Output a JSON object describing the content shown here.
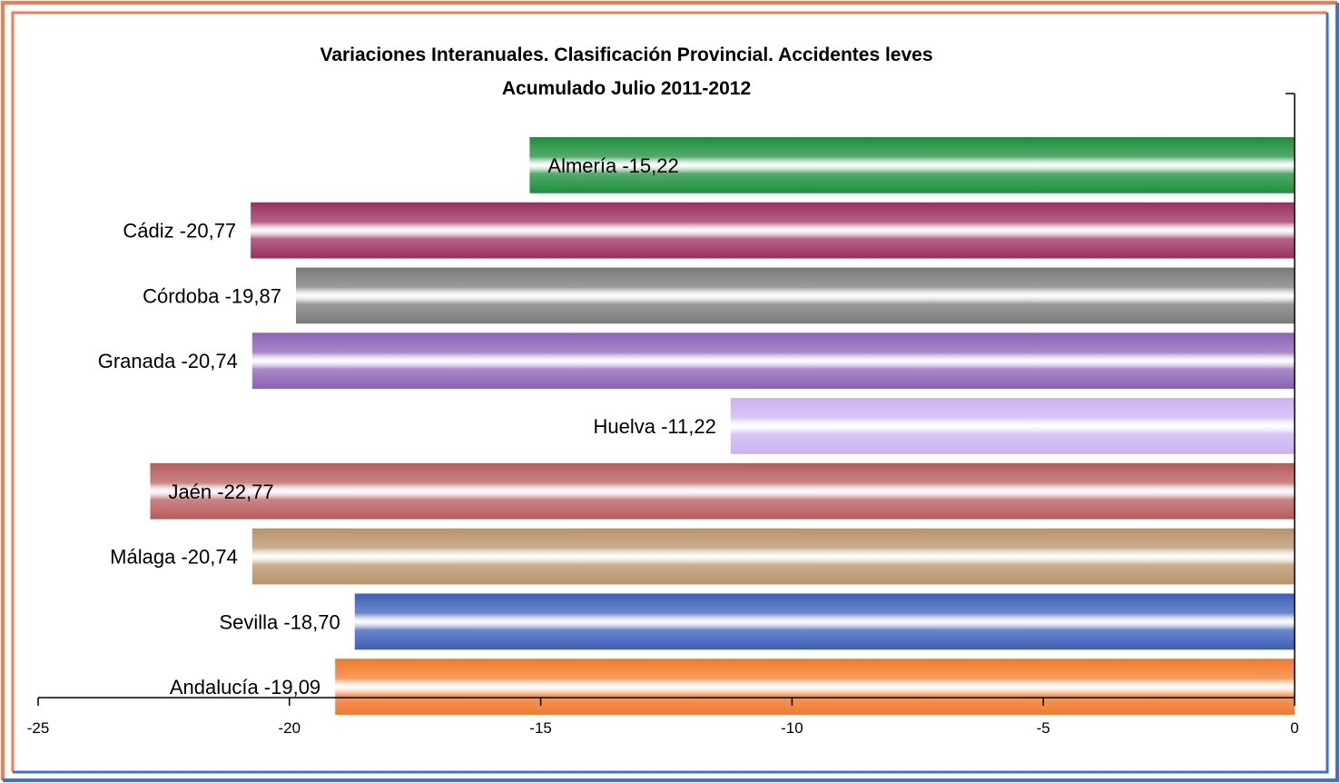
{
  "chart_data": {
    "type": "bar",
    "orientation": "horizontal",
    "title": "Variaciones Interanuales. Clasificación Provincial. Accidentes leves",
    "subtitle": "Acumulado Julio 2011-2012",
    "xlim": [
      -25,
      0
    ],
    "x_ticks": [
      "-25",
      "-20",
      "-15",
      "-10",
      "-5",
      "0"
    ],
    "x_tick_values": [
      -25,
      -20,
      -15,
      -10,
      -5,
      0
    ],
    "grid": false,
    "legend": "none",
    "categories": [
      "Almería",
      "Cádiz",
      "Córdoba",
      "Granada",
      "Huelva",
      "Jaén",
      "Málaga",
      "Sevilla",
      "Andalucía"
    ],
    "values": [
      -15.22,
      -20.77,
      -19.87,
      -20.74,
      -11.22,
      -22.77,
      -20.74,
      -18.7,
      -19.09
    ],
    "labels": [
      "Almería -15,22",
      "Cádiz -20,77",
      "Córdoba -19,87",
      "Granada -20,74",
      "Huelva -11,22",
      "Jaén -22,77",
      "Málaga -20,74",
      "Sevilla -18,70",
      "Andalucía -19,09"
    ],
    "label_inside": [
      true,
      false,
      false,
      false,
      false,
      true,
      false,
      false,
      false
    ],
    "bar_colors": [
      "#1b8f3a",
      "#9a2f5e",
      "#7a7a7a",
      "#8a62b4",
      "#cbb2f2",
      "#b85b5b",
      "#b9936a",
      "#3b5fb8",
      "#f07a2a"
    ],
    "frame_colors": {
      "outer_top_left": "#f07b55",
      "outer_right_bottom": "#3f6ee0"
    }
  }
}
